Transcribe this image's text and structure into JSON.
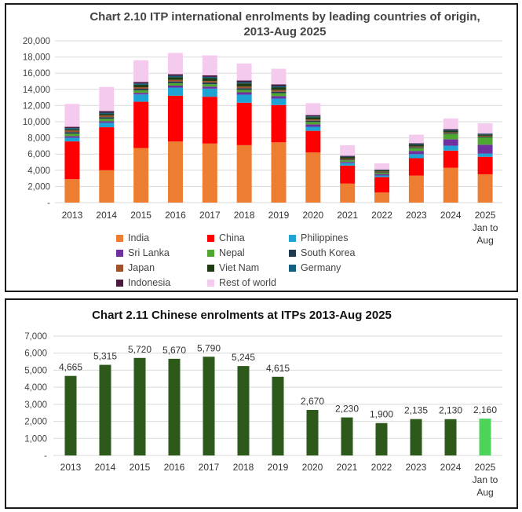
{
  "chart1": {
    "title_line1": "Chart 2.10 ITP international enrolments by leading countries of origin,",
    "title_line2": "2013-Aug 2025",
    "chart_data": {
      "type": "bar",
      "stacked": true,
      "categories": [
        "2013",
        "2014",
        "2015",
        "2016",
        "2017",
        "2018",
        "2019",
        "2020",
        "2021",
        "2022",
        "2023",
        "2024",
        "2025 Jan to Aug"
      ],
      "ylim": [
        0,
        20000
      ],
      "yticks": [
        "-",
        "2,000",
        "4,000",
        "6,000",
        "8,000",
        "10,000",
        "12,000",
        "14,000",
        "16,000",
        "18,000",
        "20,000"
      ],
      "grid": true,
      "legend_position": "bottom",
      "series": [
        {
          "name": "India",
          "color": "#ed7d31",
          "values": [
            2900,
            4000,
            6750,
            7550,
            7300,
            7100,
            7450,
            6200,
            2350,
            1250,
            3350,
            4300,
            3500
          ]
        },
        {
          "name": "China",
          "color": "#ff0000",
          "values": [
            4665,
            5315,
            5720,
            5670,
            5790,
            5245,
            4615,
            2670,
            2230,
            1900,
            2135,
            2130,
            2160
          ]
        },
        {
          "name": "Philippines",
          "color": "#1fa3d4",
          "values": [
            450,
            550,
            900,
            1000,
            1000,
            1000,
            800,
            500,
            300,
            200,
            500,
            600,
            400
          ]
        },
        {
          "name": "Sri Lanka",
          "color": "#7030a0",
          "values": [
            200,
            200,
            200,
            250,
            250,
            300,
            300,
            300,
            150,
            150,
            400,
            800,
            1100
          ]
        },
        {
          "name": "Nepal",
          "color": "#4ea72e",
          "values": [
            300,
            300,
            300,
            300,
            300,
            300,
            350,
            300,
            200,
            150,
            350,
            650,
            900
          ]
        },
        {
          "name": "South Korea",
          "color": "#1f3b4d",
          "values": [
            200,
            200,
            200,
            200,
            200,
            200,
            200,
            150,
            100,
            100,
            100,
            100,
            100
          ]
        },
        {
          "name": "Japan",
          "color": "#a0522d",
          "values": [
            200,
            200,
            200,
            200,
            200,
            200,
            200,
            150,
            100,
            100,
            100,
            100,
            100
          ]
        },
        {
          "name": "Viet Nam",
          "color": "#1e3d14",
          "values": [
            150,
            200,
            300,
            350,
            350,
            400,
            350,
            300,
            200,
            150,
            200,
            200,
            150
          ]
        },
        {
          "name": "Germany",
          "color": "#156082",
          "values": [
            150,
            150,
            150,
            150,
            150,
            150,
            150,
            100,
            50,
            50,
            100,
            100,
            100
          ]
        },
        {
          "name": "Indonesia",
          "color": "#4a1a3d",
          "values": [
            150,
            200,
            200,
            200,
            200,
            200,
            200,
            150,
            100,
            50,
            100,
            100,
            50
          ]
        },
        {
          "name": "Rest of world",
          "color": "#f4cbee",
          "values": [
            2835,
            2985,
            2680,
            2630,
            2460,
            2105,
            1935,
            1480,
            1320,
            750,
            1065,
            1320,
            1240
          ]
        }
      ]
    }
  },
  "chart2": {
    "title": "Chart 2.11  Chinese enrolments at ITPs 2013-Aug 2025",
    "chart_data": {
      "type": "bar",
      "categories": [
        "2013",
        "2014",
        "2015",
        "2016",
        "2017",
        "2018",
        "2019",
        "2020",
        "2021",
        "2022",
        "2023",
        "2024",
        "2025 Jan to Aug"
      ],
      "values": [
        4665,
        5315,
        5720,
        5670,
        5790,
        5245,
        4615,
        2670,
        2230,
        1900,
        2135,
        2130,
        2160
      ],
      "data_labels": [
        "4,665",
        "5,315",
        "5,720",
        "5,670",
        "5,790",
        "5,245",
        "4,615",
        "2,670",
        "2,230",
        "1,900",
        "2,135",
        "2,130",
        "2,160"
      ],
      "ylim": [
        0,
        7000
      ],
      "yticks": [
        "-",
        "1,000",
        "2,000",
        "3,000",
        "4,000",
        "5,000",
        "6,000",
        "7,000"
      ],
      "grid": true,
      "bar_color": "#2d5a1b",
      "highlight_color": "#4cd45a",
      "highlight_index": 12
    }
  }
}
